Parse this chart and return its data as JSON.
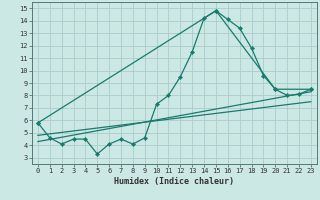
{
  "xlabel": "Humidex (Indice chaleur)",
  "bg_color": "#cce8e4",
  "grid_color": "#aacccc",
  "line_color": "#1a7a6e",
  "xlim": [
    -0.5,
    23.5
  ],
  "ylim": [
    2.5,
    15.5
  ],
  "xticks": [
    0,
    1,
    2,
    3,
    4,
    5,
    6,
    7,
    8,
    9,
    10,
    11,
    12,
    13,
    14,
    15,
    16,
    17,
    18,
    19,
    20,
    21,
    22,
    23
  ],
  "yticks": [
    3,
    4,
    5,
    6,
    7,
    8,
    9,
    10,
    11,
    12,
    13,
    14,
    15
  ],
  "series1_x": [
    0,
    1,
    2,
    3,
    4,
    5,
    6,
    7,
    8,
    9,
    10,
    11,
    12,
    13,
    14,
    15,
    16,
    17,
    18,
    19,
    20,
    21,
    22,
    23
  ],
  "series1_y": [
    5.8,
    4.6,
    4.1,
    4.5,
    4.5,
    3.3,
    4.1,
    4.5,
    4.1,
    4.6,
    7.3,
    8.0,
    9.5,
    11.5,
    14.2,
    14.8,
    14.1,
    13.4,
    11.8,
    9.6,
    8.5,
    8.0,
    8.1,
    8.5
  ],
  "series2_x": [
    0,
    15,
    20,
    23
  ],
  "series2_y": [
    5.8,
    14.8,
    8.5,
    8.5
  ],
  "series3_x": [
    0,
    23
  ],
  "series3_y": [
    4.3,
    8.3
  ],
  "series4_x": [
    0,
    23
  ],
  "series4_y": [
    4.8,
    7.5
  ],
  "tick_fontsize": 5.0,
  "xlabel_fontsize": 6.0
}
